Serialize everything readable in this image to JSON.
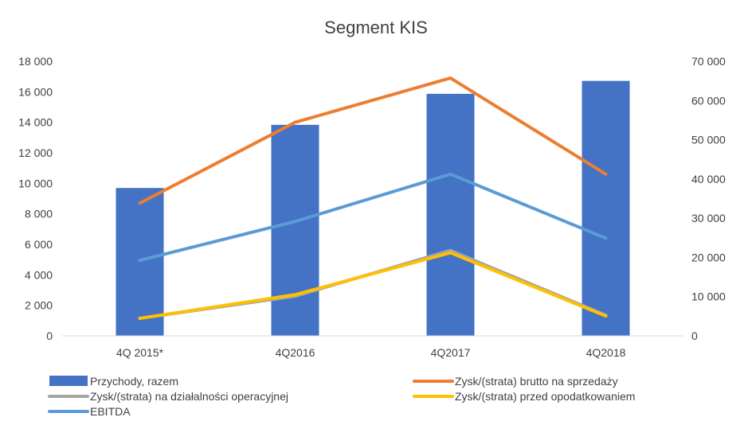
{
  "chart_data": {
    "type": "bar",
    "title": "Segment KIS",
    "categories": [
      "4Q 2015*",
      "4Q2016",
      "4Q2017",
      "4Q2018"
    ],
    "y_left": {
      "ylim": [
        0,
        18000
      ],
      "ticks": [
        "0",
        "2 000",
        "4 000",
        "6 000",
        "8 000",
        "10 000",
        "12 000",
        "14 000",
        "16 000",
        "18 000"
      ]
    },
    "y_right": {
      "ylim": [
        0,
        70000
      ],
      "ticks": [
        "0",
        "10 000",
        "20 000",
        "30 000",
        "40 000",
        "50 000",
        "60 000",
        "70 000"
      ]
    },
    "series": [
      {
        "name": "Przychody, razem",
        "type": "bar",
        "axis": "right",
        "color": "#4472C4",
        "values": [
          37700,
          53800,
          61700,
          65000
        ]
      },
      {
        "name": "Zysk/(strata) brutto na sprzedaży",
        "type": "line",
        "axis": "left",
        "color": "#ED7D31",
        "values": [
          8700,
          14000,
          16900,
          10600
        ]
      },
      {
        "name": "Zysk/(strata) na działalności operacyjnej",
        "type": "line",
        "axis": "left",
        "color": "#A5A5A5",
        "values": [
          1150,
          2600,
          5600,
          1350
        ]
      },
      {
        "name": "Zysk/(strata) przed opodatkowaniem",
        "type": "line",
        "axis": "left",
        "color": "#FFC000",
        "values": [
          1150,
          2700,
          5450,
          1300
        ]
      },
      {
        "name": "EBITDA",
        "type": "line",
        "axis": "left",
        "color": "#5B9BD5",
        "values": [
          4950,
          7500,
          10600,
          6400
        ]
      }
    ],
    "legend_position": "bottom",
    "grid": false
  }
}
